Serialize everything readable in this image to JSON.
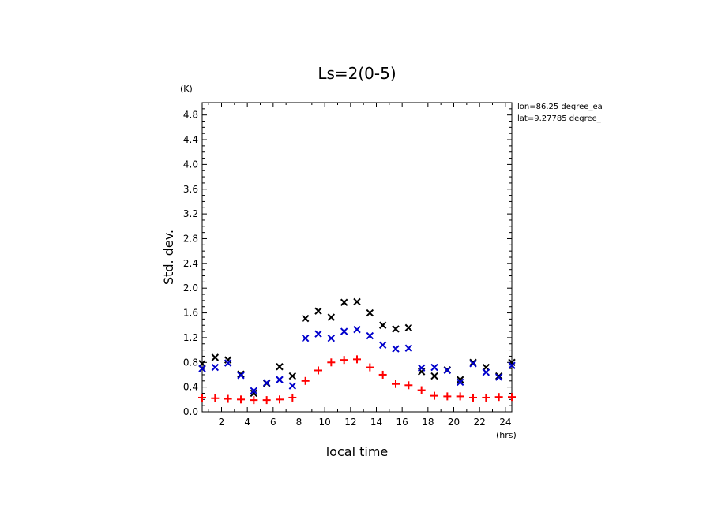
{
  "chart_data": {
    "type": "scatter",
    "title": "Ls=2(0-5)",
    "xlabel": "local time",
    "ylabel": "Std. dev.",
    "x_unit": "(hrs)",
    "y_unit": "(K)",
    "xlim": [
      0.5,
      24.5
    ],
    "ylim": [
      0.0,
      5.0
    ],
    "x_ticks": [
      2,
      4,
      6,
      8,
      10,
      12,
      14,
      16,
      18,
      20,
      22,
      24
    ],
    "y_ticks": [
      0.0,
      0.4,
      0.8,
      1.2,
      1.6,
      2.0,
      2.4,
      2.8,
      3.2,
      3.6,
      4.0,
      4.4,
      4.8
    ],
    "y_tick_labels": [
      "0.0",
      "0.4",
      "0.8",
      "1.2",
      "1.6",
      "2.0",
      "2.4",
      "2.8",
      "3.2",
      "3.6",
      "4.0",
      "4.4",
      "4.8"
    ],
    "annotations": [
      "lon=86.25 degree_ea",
      "lat=9.27785 degree_"
    ],
    "grid": false,
    "x": [
      0.5,
      1.5,
      2.5,
      3.5,
      4.5,
      5.5,
      6.5,
      7.5,
      8.5,
      9.5,
      10.5,
      11.5,
      12.5,
      13.5,
      14.5,
      15.5,
      16.5,
      17.5,
      18.5,
      19.5,
      20.5,
      21.5,
      22.5,
      23.5,
      24.5
    ],
    "series": [
      {
        "marker": "x",
        "color": "#000000",
        "values": [
          0.78,
          0.88,
          0.84,
          0.61,
          0.3,
          0.46,
          0.73,
          0.58,
          1.51,
          1.63,
          1.53,
          1.77,
          1.78,
          1.6,
          1.4,
          1.34,
          1.36,
          0.65,
          0.58,
          0.68,
          0.52,
          0.8,
          0.72,
          0.58,
          0.8
        ]
      },
      {
        "marker": "x",
        "color": "#0000cc",
        "values": [
          0.7,
          0.72,
          0.79,
          0.59,
          0.34,
          0.47,
          0.52,
          0.42,
          1.19,
          1.26,
          1.19,
          1.3,
          1.33,
          1.23,
          1.08,
          1.02,
          1.03,
          0.71,
          0.72,
          0.67,
          0.48,
          0.78,
          0.64,
          0.56,
          0.75
        ]
      },
      {
        "marker": "+",
        "color": "#ff0000",
        "values": [
          0.23,
          0.22,
          0.21,
          0.2,
          0.19,
          0.19,
          0.2,
          0.23,
          0.5,
          0.67,
          0.8,
          0.84,
          0.85,
          0.72,
          0.6,
          0.45,
          0.43,
          0.35,
          0.26,
          0.25,
          0.25,
          0.23,
          0.23,
          0.24,
          0.24
        ]
      }
    ]
  }
}
